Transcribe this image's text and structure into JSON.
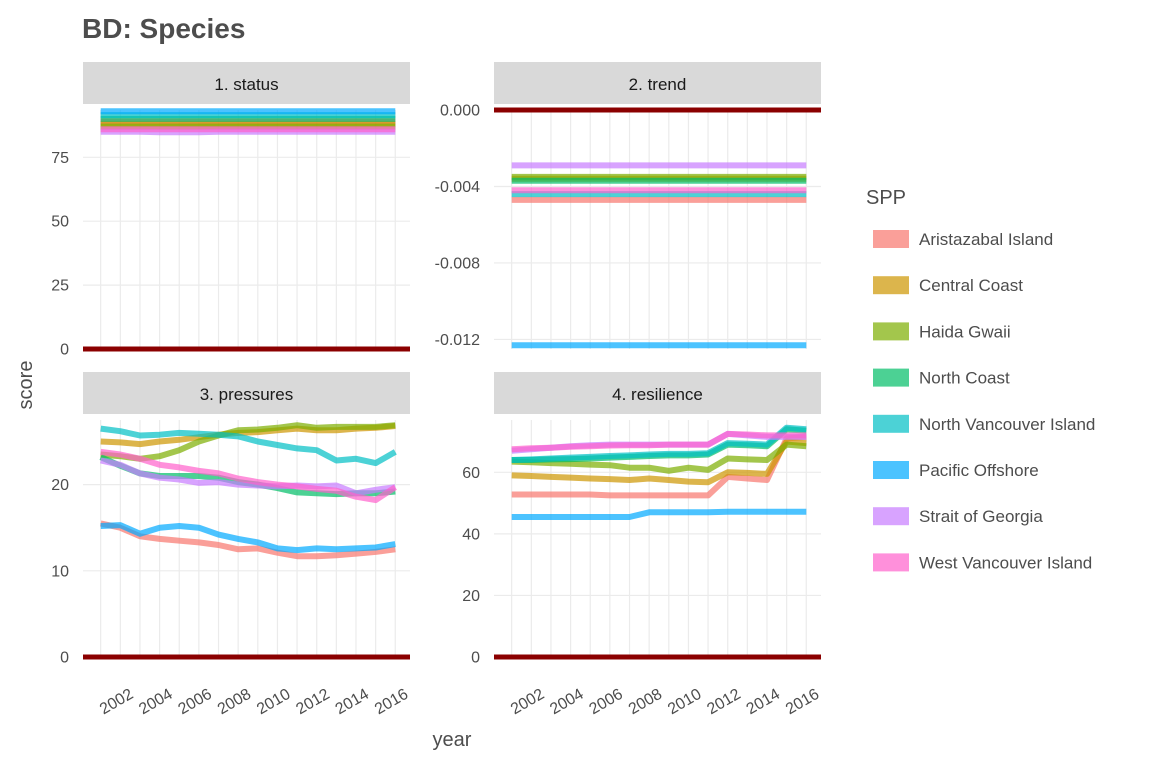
{
  "chart_data": {
    "type": "line",
    "title": "BD: Species",
    "xlabel": "year",
    "ylabel": "score",
    "legend_title": "SPP",
    "legend_position": "right",
    "grid": true,
    "zero_line_color": "#8B0000",
    "x": [
      2001,
      2002,
      2003,
      2004,
      2005,
      2006,
      2007,
      2008,
      2009,
      2010,
      2011,
      2012,
      2013,
      2014,
      2015,
      2016
    ],
    "x_ticks": [
      "2002",
      "2004",
      "2006",
      "2008",
      "2010",
      "2012",
      "2014",
      "2016"
    ],
    "series_meta": [
      {
        "name": "Aristazabal Island",
        "color": "#F8766D"
      },
      {
        "name": "Central Coast",
        "color": "#CD9600"
      },
      {
        "name": "Haida Gwaii",
        "color": "#7CAE00"
      },
      {
        "name": "North Coast",
        "color": "#00BE67"
      },
      {
        "name": "North Vancouver Island",
        "color": "#00BFC4"
      },
      {
        "name": "Pacific Offshore",
        "color": "#00A9FF"
      },
      {
        "name": "Strait of Georgia",
        "color": "#C77CFF"
      },
      {
        "name": "West Vancouver Island",
        "color": "#FF61CC"
      }
    ],
    "panels": [
      {
        "label": "1. status",
        "ylim": [
          0,
          93.5
        ],
        "y_ticks": [
          0,
          25,
          50,
          75
        ],
        "y_tick_labels": [
          "0",
          "25",
          "50",
          "75"
        ],
        "series": [
          {
            "name": "Aristazabal Island",
            "values": [
              89,
              89,
              89,
              89,
              89,
              89,
              89,
              89,
              89,
              89,
              89,
              89,
              89,
              89,
              89,
              89
            ]
          },
          {
            "name": "Central Coast",
            "values": [
              88,
              88,
              88,
              88,
              88,
              88,
              88,
              88,
              88,
              88,
              88,
              88,
              88,
              88,
              88,
              88
            ]
          },
          {
            "name": "Haida Gwaii",
            "values": [
              87,
              87,
              87,
              87,
              87,
              87,
              87,
              87,
              87,
              87,
              87,
              87,
              87,
              87,
              87,
              87
            ]
          },
          {
            "name": "North Coast",
            "values": [
              90,
              90,
              90,
              90,
              90,
              90,
              90,
              90,
              90,
              90,
              90,
              90,
              90,
              90,
              90,
              90
            ]
          },
          {
            "name": "North Vancouver Island",
            "values": [
              91.5,
              91.5,
              91.5,
              91.5,
              91.5,
              91.5,
              91.5,
              91.5,
              91.5,
              91.5,
              91.5,
              91.5,
              91.5,
              91.5,
              91.5,
              91.5
            ]
          },
          {
            "name": "Pacific Offshore",
            "values": [
              93,
              93,
              93,
              93,
              93,
              93,
              93,
              93,
              93,
              93,
              93,
              93,
              93,
              93,
              93,
              93
            ]
          },
          {
            "name": "Strait of Georgia",
            "values": [
              85,
              85,
              85,
              84.8,
              84.8,
              84.8,
              85,
              85,
              85,
              85,
              85,
              85,
              85,
              85,
              85,
              85
            ]
          },
          {
            "name": "West Vancouver Island",
            "values": [
              86,
              86,
              86,
              86,
              86,
              86,
              86,
              86,
              86,
              86,
              86,
              86,
              86,
              86,
              86,
              86
            ]
          }
        ]
      },
      {
        "label": "2. trend",
        "ylim": [
          -0.0125,
          0.0
        ],
        "y_ticks": [
          0.0,
          -0.004,
          -0.008,
          -0.012
        ],
        "y_tick_labels": [
          "0.000",
          "-0.004",
          "-0.008",
          "-0.012"
        ],
        "series": [
          {
            "name": "Aristazabal Island",
            "values": [
              -0.0047,
              -0.0047,
              -0.0047,
              -0.0047,
              -0.0047,
              -0.0047,
              -0.0047,
              -0.0047,
              -0.0047,
              -0.0047,
              -0.0047,
              -0.0047,
              -0.0047,
              -0.0047,
              -0.0047,
              -0.0047
            ]
          },
          {
            "name": "Central Coast",
            "values": [
              -0.0036,
              -0.0036,
              -0.0036,
              -0.0036,
              -0.0036,
              -0.0036,
              -0.0036,
              -0.0036,
              -0.0036,
              -0.0036,
              -0.0036,
              -0.0036,
              -0.0036,
              -0.0036,
              -0.0036,
              -0.0036
            ]
          },
          {
            "name": "Haida Gwaii",
            "values": [
              -0.0035,
              -0.0035,
              -0.0035,
              -0.0035,
              -0.0035,
              -0.0035,
              -0.0035,
              -0.0035,
              -0.0035,
              -0.0035,
              -0.0035,
              -0.0035,
              -0.0035,
              -0.0035,
              -0.0035,
              -0.0035
            ]
          },
          {
            "name": "North Coast",
            "values": [
              -0.0037,
              -0.0037,
              -0.0037,
              -0.0037,
              -0.0037,
              -0.0037,
              -0.0037,
              -0.0037,
              -0.0037,
              -0.0037,
              -0.0037,
              -0.0037,
              -0.0037,
              -0.0037,
              -0.0037,
              -0.0037
            ]
          },
          {
            "name": "North Vancouver Island",
            "values": [
              -0.0044,
              -0.0044,
              -0.0044,
              -0.0044,
              -0.0044,
              -0.0044,
              -0.0044,
              -0.0044,
              -0.0044,
              -0.0044,
              -0.0044,
              -0.0044,
              -0.0044,
              -0.0044,
              -0.0044,
              -0.0044
            ]
          },
          {
            "name": "Pacific Offshore",
            "values": [
              -0.0123,
              -0.0123,
              -0.0123,
              -0.0123,
              -0.0123,
              -0.0123,
              -0.0123,
              -0.0123,
              -0.0123,
              -0.0123,
              -0.0123,
              -0.0123,
              -0.0123,
              -0.0123,
              -0.0123,
              -0.0123
            ]
          },
          {
            "name": "Strait of Georgia",
            "values": [
              -0.0029,
              -0.0029,
              -0.0029,
              -0.0029,
              -0.0029,
              -0.0029,
              -0.0029,
              -0.0029,
              -0.0029,
              -0.0029,
              -0.0029,
              -0.0029,
              -0.0029,
              -0.0029,
              -0.0029,
              -0.0029
            ]
          },
          {
            "name": "West Vancouver Island",
            "values": [
              -0.0042,
              -0.0042,
              -0.0042,
              -0.0042,
              -0.0042,
              -0.0042,
              -0.0042,
              -0.0042,
              -0.0042,
              -0.0042,
              -0.0042,
              -0.0042,
              -0.0042,
              -0.0042,
              -0.0042,
              -0.0042
            ]
          }
        ]
      },
      {
        "label": "3. pressures",
        "ylim": [
          0,
          27.5
        ],
        "y_ticks": [
          0,
          10,
          20
        ],
        "y_tick_labels": [
          "0",
          "10",
          "20"
        ],
        "series": [
          {
            "name": "Aristazabal Island",
            "values": [
              15.5,
              15.0,
              14.0,
              13.7,
              13.5,
              13.3,
              13.0,
              12.5,
              12.6,
              12.1,
              11.7,
              11.7,
              11.8,
              12.0,
              12.2,
              12.5
            ]
          },
          {
            "name": "Central Coast",
            "values": [
              25.0,
              24.9,
              24.7,
              25.0,
              25.2,
              25.5,
              25.8,
              26.0,
              26.1,
              26.3,
              26.5,
              26.3,
              26.3,
              26.5,
              26.6,
              26.8
            ]
          },
          {
            "name": "Haida Gwaii",
            "values": [
              23.5,
              23.3,
              23.0,
              23.3,
              24.0,
              25.0,
              25.7,
              26.3,
              26.4,
              26.6,
              26.9,
              26.6,
              26.7,
              26.7,
              26.7,
              26.9
            ]
          },
          {
            "name": "North Coast",
            "values": [
              23.2,
              22.2,
              21.3,
              21.0,
              21.0,
              21.0,
              20.8,
              20.3,
              20.0,
              19.6,
              19.1,
              19.0,
              18.9,
              19.0,
              19.0,
              19.2
            ]
          },
          {
            "name": "North Vancouver Island",
            "values": [
              26.5,
              26.2,
              25.7,
              25.8,
              26.0,
              25.9,
              25.8,
              25.6,
              25.0,
              24.6,
              24.2,
              24.0,
              22.8,
              23.0,
              22.5,
              23.8
            ]
          },
          {
            "name": "Pacific Offshore",
            "values": [
              15.2,
              15.3,
              14.3,
              15.0,
              15.2,
              15.0,
              14.2,
              13.7,
              13.3,
              12.6,
              12.4,
              12.6,
              12.5,
              12.6,
              12.7,
              13.1
            ]
          },
          {
            "name": "Strait of Georgia",
            "values": [
              22.8,
              22.3,
              21.3,
              20.8,
              20.6,
              20.2,
              20.3,
              20.0,
              19.9,
              19.8,
              19.9,
              19.8,
              19.9,
              19.0,
              19.4,
              19.7
            ]
          },
          {
            "name": "West Vancouver Island",
            "values": [
              23.8,
              23.5,
              23.0,
              22.3,
              22.0,
              21.6,
              21.3,
              20.7,
              20.3,
              20.0,
              19.8,
              19.5,
              19.3,
              18.6,
              18.2,
              19.7
            ]
          }
        ]
      },
      {
        "label": "4. resilience",
        "ylim": [
          0,
          77
        ],
        "y_ticks": [
          0,
          20,
          40,
          60
        ],
        "y_tick_labels": [
          "0",
          "20",
          "40",
          "60"
        ],
        "series": [
          {
            "name": "Aristazabal Island",
            "values": [
              52.8,
              52.8,
              52.8,
              52.8,
              52.8,
              52.5,
              52.5,
              52.5,
              52.5,
              52.5,
              52.5,
              58.5,
              58.0,
              57.5,
              71.0,
              71.5
            ]
          },
          {
            "name": "Central Coast",
            "values": [
              59.0,
              58.8,
              58.5,
              58.3,
              58.0,
              57.8,
              57.5,
              58.0,
              57.5,
              57.0,
              56.8,
              60.0,
              59.8,
              59.5,
              70.0,
              69.5
            ]
          },
          {
            "name": "Haida Gwaii",
            "values": [
              63.5,
              63.3,
              63.0,
              62.8,
              62.5,
              62.3,
              61.5,
              61.5,
              60.5,
              61.5,
              60.8,
              64.5,
              64.2,
              64.0,
              69.0,
              68.5
            ]
          },
          {
            "name": "North Coast",
            "values": [
              64.0,
              64.0,
              64.2,
              64.3,
              64.5,
              64.8,
              65.0,
              65.3,
              65.5,
              65.5,
              65.8,
              69.0,
              68.8,
              68.5,
              74.0,
              73.5
            ]
          },
          {
            "name": "North Vancouver Island",
            "values": [
              64.0,
              64.2,
              64.5,
              64.8,
              65.0,
              65.3,
              65.5,
              65.8,
              66.0,
              66.0,
              66.2,
              69.5,
              69.3,
              69.0,
              74.5,
              74.0
            ]
          },
          {
            "name": "Pacific Offshore",
            "values": [
              45.5,
              45.5,
              45.5,
              45.5,
              45.5,
              45.5,
              45.5,
              47.0,
              47.0,
              47.0,
              47.0,
              47.2,
              47.2,
              47.2,
              47.2,
              47.2
            ]
          },
          {
            "name": "Strait of Georgia",
            "values": [
              67.0,
              67.5,
              68.0,
              68.5,
              68.8,
              69.0,
              69.0,
              69.0,
              69.0,
              69.0,
              69.0,
              72.5,
              72.0,
              71.5,
              71.5,
              71.5
            ]
          },
          {
            "name": "West Vancouver Island",
            "values": [
              67.5,
              67.8,
              68.0,
              68.3,
              68.5,
              68.7,
              68.8,
              68.8,
              69.0,
              69.0,
              69.0,
              72.5,
              72.3,
              72.0,
              72.0,
              72.0
            ]
          }
        ]
      }
    ]
  }
}
